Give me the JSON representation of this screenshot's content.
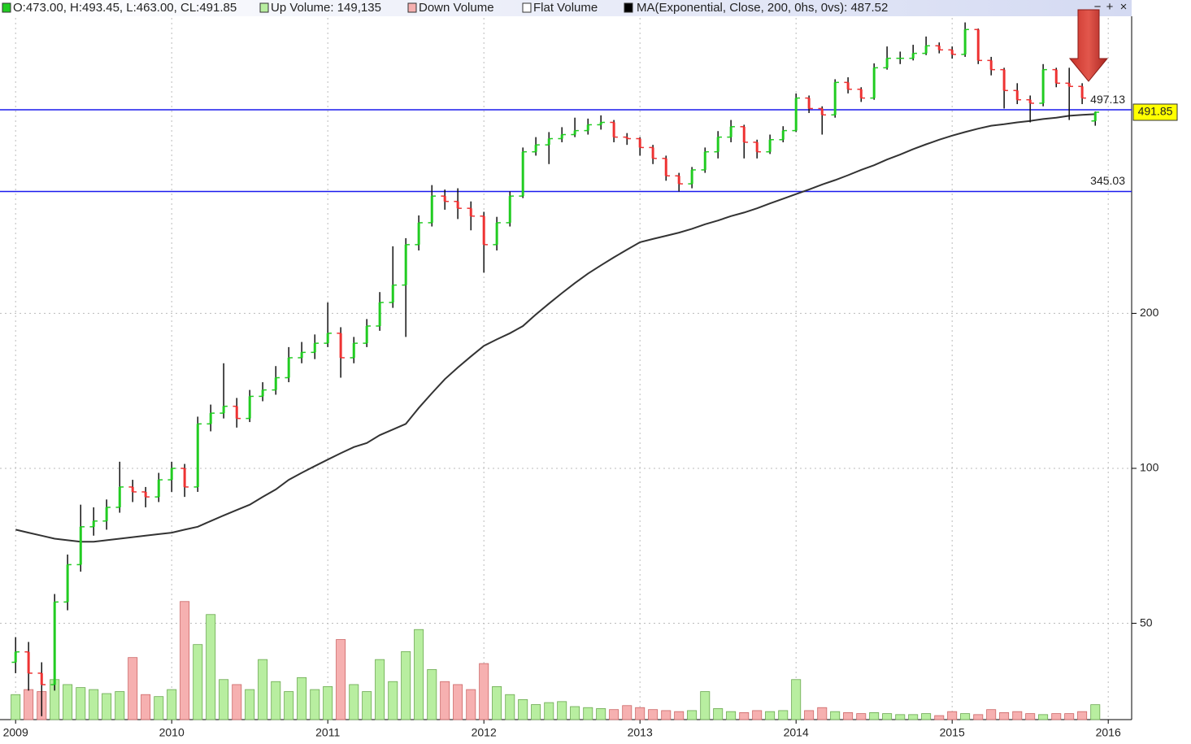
{
  "chart_data": {
    "type": "ohlc",
    "header": [
      "O:473.00, H:493.45, L:463.00, CL:491.85",
      "Up Volume: 149,135",
      "Down Volume",
      "Flat Volume",
      "MA(Exponential, Close, 200, 0hs, 0vs): 487.52"
    ],
    "controls": [
      "−",
      "+",
      "×"
    ],
    "x": [
      2009,
      2009.083,
      2009.167,
      2009.25,
      2009.333,
      2009.417,
      2009.5,
      2009.583,
      2009.667,
      2009.75,
      2009.833,
      2009.917,
      2010,
      2010.083,
      2010.167,
      2010.25,
      2010.333,
      2010.417,
      2010.5,
      2010.583,
      2010.667,
      2010.75,
      2010.833,
      2010.917,
      2011,
      2011.083,
      2011.167,
      2011.25,
      2011.333,
      2011.417,
      2011.5,
      2011.583,
      2011.667,
      2011.75,
      2011.833,
      2011.917,
      2012,
      2012.083,
      2012.167,
      2012.25,
      2012.333,
      2012.417,
      2012.5,
      2012.583,
      2012.667,
      2012.75,
      2012.833,
      2012.917,
      2013,
      2013.083,
      2013.167,
      2013.25,
      2013.333,
      2013.417,
      2013.5,
      2013.583,
      2013.667,
      2013.75,
      2013.833,
      2013.917,
      2014,
      2014.083,
      2014.167,
      2014.25,
      2014.333,
      2014.417,
      2014.5,
      2014.583,
      2014.667,
      2014.75,
      2014.833,
      2014.917,
      2015,
      2015.083,
      2015.167,
      2015.25,
      2015.333,
      2015.417,
      2015.5,
      2015.583,
      2015.667,
      2015.75,
      2015.833,
      2015.917
    ],
    "open": [
      42,
      44,
      40,
      38,
      55,
      65,
      77,
      79,
      84,
      92,
      90,
      88,
      95,
      100,
      92,
      122,
      128,
      132,
      125,
      138,
      142,
      150,
      164,
      168,
      175,
      183,
      164,
      175,
      189,
      210,
      227,
      272,
      300,
      338,
      330,
      320,
      309,
      272,
      300,
      338,
      412,
      425,
      437,
      445,
      453,
      465,
      470,
      440,
      437,
      420,
      400,
      370,
      357,
      380,
      412,
      440,
      461,
      430,
      412,
      435,
      453,
      524,
      500,
      486,
      562,
      545,
      524,
      600,
      626,
      626,
      640,
      662,
      650,
      637,
      712,
      620,
      595,
      542,
      520,
      512,
      595,
      560,
      552,
      473
    ],
    "high": [
      47,
      46,
      42,
      57,
      68,
      85,
      84,
      87,
      103,
      95,
      92,
      98,
      103,
      102,
      126,
      133,
      160,
      137,
      142,
      147,
      158,
      172,
      176,
      182,
      210,
      188,
      180,
      195,
      220,
      270,
      280,
      310,
      355,
      348,
      350,
      330,
      315,
      308,
      345,
      420,
      440,
      450,
      460,
      480,
      478,
      485,
      475,
      448,
      440,
      425,
      405,
      375,
      385,
      420,
      452,
      475,
      465,
      435,
      445,
      462,
      535,
      530,
      505,
      570,
      575,
      550,
      612,
      660,
      645,
      665,
      690,
      672,
      660,
      735,
      715,
      630,
      600,
      560,
      530,
      610,
      600,
      600,
      560,
      493.45
    ],
    "low": [
      40,
      37,
      33,
      37,
      53,
      63,
      74,
      76,
      82,
      86,
      84,
      86,
      90,
      88,
      90,
      118,
      125,
      120,
      123,
      135,
      139,
      147,
      160,
      163,
      172,
      150,
      160,
      172,
      185,
      205,
      180,
      265,
      295,
      318,
      305,
      290,
      240,
      265,
      295,
      335,
      405,
      390,
      430,
      440,
      445,
      455,
      430,
      425,
      405,
      390,
      362,
      345,
      350,
      375,
      400,
      430,
      400,
      400,
      408,
      430,
      450,
      490,
      445,
      480,
      535,
      515,
      520,
      595,
      610,
      620,
      635,
      640,
      625,
      630,
      610,
      580,
      500,
      510,
      470,
      505,
      550,
      475,
      510,
      463
    ],
    "close": [
      44,
      40,
      38,
      55,
      65,
      77,
      79,
      84,
      92,
      90,
      88,
      95,
      100,
      92,
      122,
      128,
      132,
      125,
      138,
      142,
      150,
      164,
      168,
      175,
      183,
      164,
      175,
      189,
      210,
      227,
      272,
      300,
      338,
      330,
      320,
      309,
      272,
      300,
      338,
      412,
      425,
      437,
      445,
      453,
      465,
      470,
      440,
      437,
      420,
      400,
      370,
      357,
      380,
      412,
      440,
      461,
      430,
      412,
      435,
      453,
      524,
      500,
      486,
      562,
      545,
      524,
      600,
      626,
      626,
      640,
      662,
      650,
      637,
      712,
      620,
      595,
      542,
      520,
      512,
      595,
      560,
      552,
      524,
      491.85
    ],
    "volume": [
      250000,
      300000,
      280000,
      400000,
      350000,
      320000,
      300000,
      260000,
      280000,
      620000,
      250000,
      230000,
      300000,
      1180000,
      750000,
      1050000,
      400000,
      350000,
      300000,
      600000,
      380000,
      280000,
      420000,
      300000,
      330000,
      800000,
      350000,
      280000,
      600000,
      380000,
      680000,
      900000,
      500000,
      380000,
      350000,
      300000,
      560000,
      330000,
      250000,
      200000,
      150000,
      170000,
      180000,
      130000,
      120000,
      110000,
      100000,
      140000,
      120000,
      100000,
      90000,
      80000,
      90000,
      280000,
      110000,
      80000,
      70000,
      90000,
      80000,
      90000,
      400000,
      90000,
      120000,
      80000,
      70000,
      60000,
      70000,
      60000,
      50000,
      50000,
      60000,
      40000,
      80000,
      60000,
      50000,
      100000,
      70000,
      80000,
      60000,
      50000,
      60000,
      60000,
      80000,
      149135
    ],
    "ma": {
      "color": "#333333",
      "values": [
        76,
        75,
        74,
        73,
        72.5,
        72,
        72,
        72.5,
        73,
        73.5,
        74,
        74.5,
        75,
        76,
        77,
        79,
        81,
        83,
        85,
        88,
        91,
        95,
        98,
        101,
        104,
        107,
        110,
        112,
        116,
        119,
        122,
        131,
        140,
        149,
        157,
        165,
        173,
        178,
        183,
        189,
        199,
        209,
        219,
        229,
        239,
        248,
        257,
        266,
        275,
        279,
        283,
        287,
        292,
        298,
        303,
        309,
        314,
        320,
        327,
        334,
        341,
        348,
        356,
        363,
        371,
        380,
        388,
        398,
        407,
        417,
        426,
        435,
        443,
        450,
        457,
        463,
        466,
        470,
        473,
        477,
        480,
        484,
        486,
        487.52
      ]
    },
    "xlim": [
      2008.9,
      2016.15
    ],
    "xticks": [
      2009,
      2010,
      2011,
      2012,
      2013,
      2014,
      2015,
      2016
    ],
    "ylim": [
      32.5,
      750
    ],
    "yticks": [
      50,
      100,
      200
    ],
    "log": true,
    "grid": true,
    "vlim": [
      0,
      1300000
    ],
    "levels": [
      497.13,
      345.03
    ],
    "last_price": 491.85,
    "up_color": "#22cc22",
    "down_color": "#ee3333",
    "vol_up_color": "#b8eea0",
    "vol_down_color": "#f6b0b0",
    "level_color": "#1a1aee",
    "tag_color": "#ffff00"
  }
}
